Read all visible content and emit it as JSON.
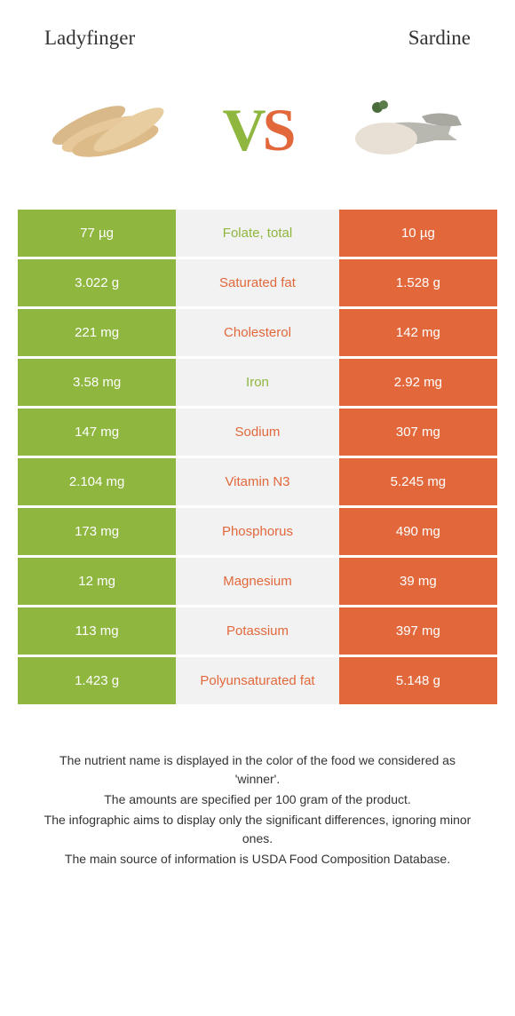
{
  "header": {
    "left_title": "Ladyfinger",
    "right_title": "Sardine"
  },
  "vs": {
    "v": "V",
    "s": "S"
  },
  "colors": {
    "green": "#8fb63f",
    "orange": "#e2683c",
    "mid_bg": "#f2f2f2",
    "text": "#333333"
  },
  "table": {
    "rows": [
      {
        "left": "77 µg",
        "label": "Folate, total",
        "right": "10 µg",
        "winner": "left"
      },
      {
        "left": "3.022 g",
        "label": "Saturated fat",
        "right": "1.528 g",
        "winner": "right"
      },
      {
        "left": "221 mg",
        "label": "Cholesterol",
        "right": "142 mg",
        "winner": "right"
      },
      {
        "left": "3.58 mg",
        "label": "Iron",
        "right": "2.92 mg",
        "winner": "left"
      },
      {
        "left": "147 mg",
        "label": "Sodium",
        "right": "307 mg",
        "winner": "right"
      },
      {
        "left": "2.104 mg",
        "label": "Vitamin N3",
        "right": "5.245 mg",
        "winner": "right"
      },
      {
        "left": "173 mg",
        "label": "Phosphorus",
        "right": "490 mg",
        "winner": "right"
      },
      {
        "left": "12 mg",
        "label": "Magnesium",
        "right": "39 mg",
        "winner": "right"
      },
      {
        "left": "113 mg",
        "label": "Potassium",
        "right": "397 mg",
        "winner": "right"
      },
      {
        "left": "1.423 g",
        "label": "Polyunsaturated fat",
        "right": "5.148 g",
        "winner": "right"
      }
    ]
  },
  "footer": {
    "line1": "The nutrient name is displayed in the color of the food we considered as 'winner'.",
    "line2": "The amounts are specified per 100 gram of the product.",
    "line3": "The infographic aims to display only the significant differences, ignoring minor ones.",
    "line4": "The main source of information is USDA Food Composition Database."
  }
}
